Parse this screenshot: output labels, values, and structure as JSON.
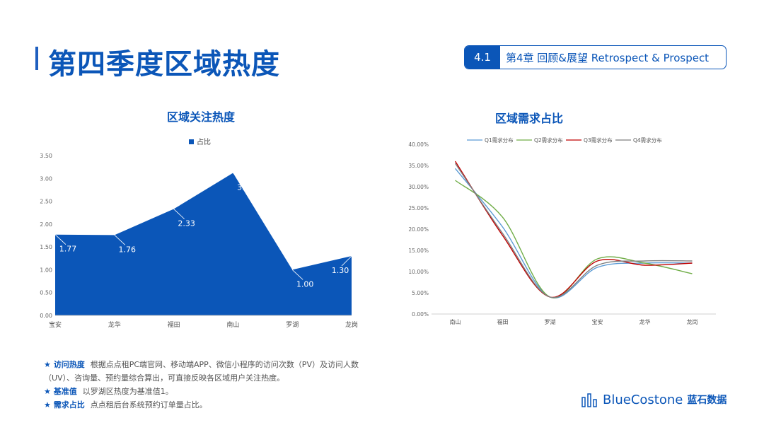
{
  "header": {
    "title": "第四季度区域热度",
    "chapter_num": "4.1",
    "chapter_text": "第4章 回顾&展望 Retrospect & Prospect"
  },
  "chart_data": [
    {
      "type": "area",
      "title": "区域关注热度",
      "legend": [
        "占比"
      ],
      "legend_position": "top",
      "categories": [
        "宝安",
        "龙华",
        "福田",
        "南山",
        "罗湖",
        "龙岗"
      ],
      "series": [
        {
          "name": "占比",
          "values": [
            1.77,
            1.76,
            2.33,
            3.12,
            1.0,
            1.3
          ]
        }
      ],
      "data_labels": [
        "1.77",
        "1.76",
        "2.33",
        "3.12",
        "1.00",
        "1.30"
      ],
      "ylim": [
        0,
        3.5
      ],
      "ytick_labels": [
        "0.00",
        "0.50",
        "1.00",
        "1.50",
        "2.00",
        "2.50",
        "3.00",
        "3.50"
      ],
      "grid": false,
      "color": "#0b56b8"
    },
    {
      "type": "line",
      "title": "区域需求占比",
      "legend_position": "top",
      "categories": [
        "南山",
        "福田",
        "罗湖",
        "宝安",
        "龙华",
        "龙岗"
      ],
      "ylim": [
        0,
        0.4
      ],
      "ytick_labels": [
        "0.00%",
        "5.00%",
        "10.00%",
        "15.00%",
        "20.00%",
        "25.00%",
        "30.00%",
        "35.00%",
        "40.00%"
      ],
      "grid": false,
      "series": [
        {
          "name": "Q1需求分布",
          "color": "#5b9bd5",
          "values": [
            0.343,
            0.205,
            0.04,
            0.11,
            0.12,
            0.12
          ]
        },
        {
          "name": "Q2需求分布",
          "color": "#70ad47",
          "values": [
            0.315,
            0.228,
            0.04,
            0.13,
            0.12,
            0.095
          ]
        },
        {
          "name": "Q3需求分布",
          "color": "#c00000",
          "values": [
            0.36,
            0.185,
            0.04,
            0.125,
            0.115,
            0.12
          ]
        },
        {
          "name": "Q4需求分布",
          "color": "#7f7f7f",
          "values": [
            0.355,
            0.19,
            0.04,
            0.115,
            0.125,
            0.125
          ]
        }
      ]
    }
  ],
  "notes": [
    {
      "key": "★ 访问热度",
      "text": "根据点点租PC端官网、移动端APP、微信小程序的访问次数（PV）及访问人数（UV）、咨询量、预约量综合算出，可直接反映各区域用户关注热度。"
    },
    {
      "key": "★ 基准值",
      "text": "以罗湖区热度为基准值1。"
    },
    {
      "key": "★ 需求占比",
      "text": "点点租后台系统预约订单量占比。"
    }
  ],
  "logo": {
    "text": "BlueCostone",
    "cn": "蓝石数据"
  }
}
